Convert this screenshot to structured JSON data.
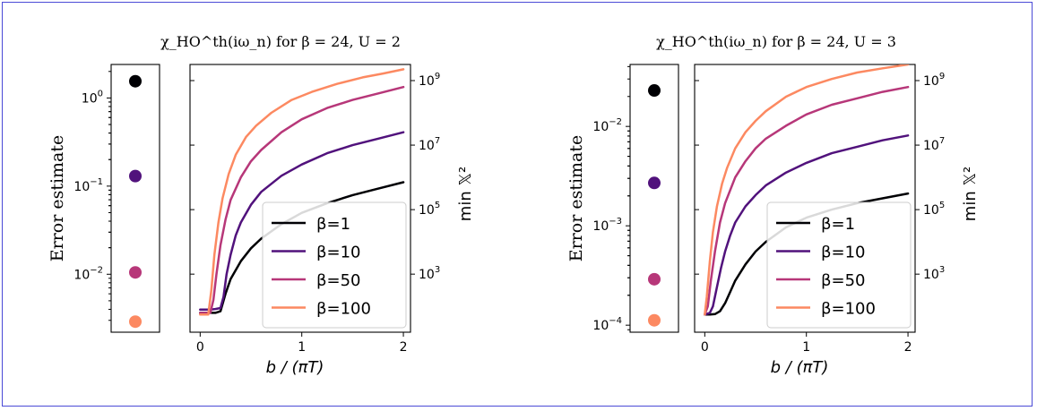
{
  "chart_data": [
    {
      "type": "line",
      "title": "χ_HO^th(iω_n) for β = 24, U = 2",
      "error_panel": {
        "ylabel": "Error estimate",
        "scale": "log",
        "ylim": [
          0.0022,
          2.4
        ],
        "yticks": [
          {
            "v": 1,
            "label": "10^0"
          },
          {
            "v": 0.1,
            "label": "10^-1"
          },
          {
            "v": 0.01,
            "label": "10^-2"
          }
        ],
        "points": [
          {
            "name": "β=1",
            "value": 1.55,
            "color": "#000004"
          },
          {
            "name": "β=10",
            "value": 0.13,
            "color": "#51127c"
          },
          {
            "name": "β=50",
            "value": 0.0105,
            "color": "#b73779"
          },
          {
            "name": "β=100",
            "value": 0.0029,
            "color": "#fc8961"
          }
        ]
      },
      "xlabel": "b / (πT)",
      "ylabel": "min 𝕏²",
      "xlim": [
        -0.1,
        2.07
      ],
      "xticks": [
        0,
        1,
        2
      ],
      "yscale": "log",
      "ylim_log10": [
        1.2,
        9.5
      ],
      "yticks": [
        {
          "v": 3,
          "label": "10^3"
        },
        {
          "v": 5,
          "label": "10^5"
        },
        {
          "v": 7,
          "label": "10^7"
        },
        {
          "v": 9,
          "label": "10^9"
        }
      ],
      "legend_position": "lower-right",
      "series": [
        {
          "name": "β=1",
          "color": "#000004",
          "x": [
            0,
            0.1,
            0.15,
            0.2,
            0.25,
            0.3,
            0.4,
            0.5,
            0.6,
            0.8,
            1.0,
            1.25,
            1.5,
            1.75,
            2.0
          ],
          "log10_y": [
            1.8,
            1.8,
            1.8,
            1.85,
            2.4,
            2.85,
            3.4,
            3.8,
            4.1,
            4.55,
            4.9,
            5.2,
            5.45,
            5.65,
            5.85
          ]
        },
        {
          "name": "β=10",
          "color": "#51127c",
          "x": [
            0,
            0.1,
            0.15,
            0.2,
            0.23,
            0.26,
            0.3,
            0.35,
            0.4,
            0.5,
            0.6,
            0.8,
            1.0,
            1.25,
            1.5,
            1.75,
            2.0
          ],
          "log10_y": [
            1.9,
            1.9,
            1.92,
            1.95,
            2.3,
            3.0,
            3.6,
            4.2,
            4.6,
            5.15,
            5.55,
            6.05,
            6.4,
            6.75,
            7.0,
            7.2,
            7.4
          ]
        },
        {
          "name": "β=50",
          "color": "#b73779",
          "x": [
            0,
            0.1,
            0.13,
            0.16,
            0.2,
            0.25,
            0.3,
            0.4,
            0.5,
            0.6,
            0.8,
            1.0,
            1.25,
            1.5,
            1.75,
            2.0
          ],
          "log10_y": [
            1.8,
            1.8,
            2.2,
            3.0,
            3.9,
            4.7,
            5.3,
            6.0,
            6.5,
            6.85,
            7.4,
            7.8,
            8.15,
            8.4,
            8.6,
            8.8
          ]
        },
        {
          "name": "β=100",
          "color": "#fc8961",
          "x": [
            0,
            0.08,
            0.11,
            0.14,
            0.18,
            0.22,
            0.28,
            0.35,
            0.45,
            0.55,
            0.7,
            0.9,
            1.1,
            1.35,
            1.6,
            1.8,
            2.0
          ],
          "log10_y": [
            1.75,
            1.75,
            2.5,
            3.6,
            4.6,
            5.35,
            6.1,
            6.7,
            7.25,
            7.6,
            8.0,
            8.4,
            8.65,
            8.9,
            9.1,
            9.22,
            9.35
          ]
        }
      ]
    },
    {
      "type": "line",
      "title": "χ_HO^th(iω_n) for β = 24, U = 3",
      "error_panel": {
        "ylabel": "Error estimate",
        "scale": "log",
        "ylim": [
          8.5e-05,
          0.042
        ],
        "yticks": [
          {
            "v": 0.01,
            "label": "10^-2"
          },
          {
            "v": 0.001,
            "label": "10^-3"
          },
          {
            "v": 0.0001,
            "label": "10^-4"
          }
        ],
        "points": [
          {
            "name": "β=1",
            "value": 0.023,
            "color": "#000004"
          },
          {
            "name": "β=10",
            "value": 0.0027,
            "color": "#51127c"
          },
          {
            "name": "β=50",
            "value": 0.00029,
            "color": "#b73779"
          },
          {
            "name": "β=100",
            "value": 0.000112,
            "color": "#fc8961"
          }
        ]
      },
      "xlabel": "b / (πT)",
      "ylabel": "min 𝕏²",
      "xlim": [
        -0.1,
        2.07
      ],
      "xticks": [
        0,
        1,
        2
      ],
      "yscale": "log",
      "ylim_log10": [
        1.2,
        9.5
      ],
      "yticks": [
        {
          "v": 3,
          "label": "10^3"
        },
        {
          "v": 5,
          "label": "10^5"
        },
        {
          "v": 7,
          "label": "10^7"
        },
        {
          "v": 9,
          "label": "10^9"
        }
      ],
      "legend_position": "lower-right",
      "series": [
        {
          "name": "β=1",
          "color": "#000004",
          "x": [
            0,
            0.05,
            0.1,
            0.15,
            0.2,
            0.25,
            0.3,
            0.4,
            0.5,
            0.6,
            0.8,
            1.0,
            1.25,
            1.5,
            1.75,
            2.0
          ],
          "log10_y": [
            1.75,
            1.75,
            1.76,
            1.85,
            2.1,
            2.45,
            2.8,
            3.3,
            3.7,
            4.0,
            4.45,
            4.75,
            5.0,
            5.2,
            5.35,
            5.5
          ]
        },
        {
          "name": "β=10",
          "color": "#51127c",
          "x": [
            0,
            0.05,
            0.08,
            0.12,
            0.16,
            0.2,
            0.25,
            0.3,
            0.4,
            0.5,
            0.6,
            0.8,
            1.0,
            1.25,
            1.5,
            1.75,
            2.0
          ],
          "log10_y": [
            1.75,
            1.8,
            2.0,
            2.6,
            3.2,
            3.7,
            4.2,
            4.6,
            5.1,
            5.45,
            5.75,
            6.15,
            6.45,
            6.75,
            6.95,
            7.15,
            7.3
          ]
        },
        {
          "name": "β=50",
          "color": "#b73779",
          "x": [
            0,
            0.03,
            0.06,
            0.1,
            0.15,
            0.2,
            0.3,
            0.4,
            0.5,
            0.6,
            0.8,
            1.0,
            1.25,
            1.5,
            1.75,
            2.0
          ],
          "log10_y": [
            1.75,
            2.0,
            2.8,
            3.7,
            4.6,
            5.2,
            6.0,
            6.5,
            6.9,
            7.2,
            7.6,
            7.95,
            8.25,
            8.45,
            8.65,
            8.8
          ]
        },
        {
          "name": "β=100",
          "color": "#fc8961",
          "x": [
            0,
            0.02,
            0.05,
            0.08,
            0.12,
            0.17,
            0.22,
            0.3,
            0.4,
            0.5,
            0.6,
            0.8,
            1.0,
            1.25,
            1.5,
            1.75,
            2.0
          ],
          "log10_y": [
            1.75,
            2.3,
            3.4,
            4.3,
            5.1,
            5.8,
            6.3,
            6.9,
            7.4,
            7.75,
            8.05,
            8.5,
            8.8,
            9.05,
            9.25,
            9.38,
            9.5
          ]
        }
      ]
    }
  ]
}
